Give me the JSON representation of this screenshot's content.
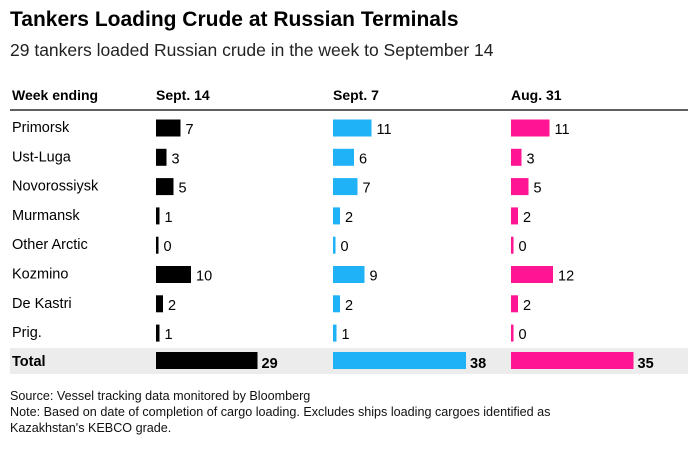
{
  "title": "Tankers Loading Crude at Russian Terminals",
  "subtitle": "29 tankers loaded Russian crude in the week to September 14",
  "source": "Source: Vessel tracking data monitored by Bloomberg",
  "note_line1": "Note: Based on date of completion of cargo loading. Excludes ships loading cargoes identified as",
  "note_line2": "Kazakhstan's KEBCO grade.",
  "colors": {
    "sept14": "#000000",
    "sept7": "#1fb2f7",
    "aug31": "#ff1493",
    "total_band": "#ececec"
  },
  "chart_data": {
    "type": "bar",
    "row_header": "Week ending",
    "categories": [
      "Primorsk",
      "Ust-Luga",
      "Novorossiysk",
      "Murmansk",
      "Other Arctic",
      "Kozmino",
      "De Kastri",
      "Prig."
    ],
    "series": [
      {
        "name": "Sept. 14",
        "values": [
          7,
          3,
          5,
          1,
          0,
          10,
          2,
          1
        ]
      },
      {
        "name": "Sept. 7",
        "values": [
          11,
          6,
          7,
          2,
          0,
          9,
          2,
          1
        ]
      },
      {
        "name": "Aug. 31",
        "values": [
          11,
          3,
          5,
          2,
          0,
          12,
          2,
          0
        ]
      }
    ],
    "total_label": "Total",
    "totals": [
      29,
      38,
      35
    ]
  }
}
